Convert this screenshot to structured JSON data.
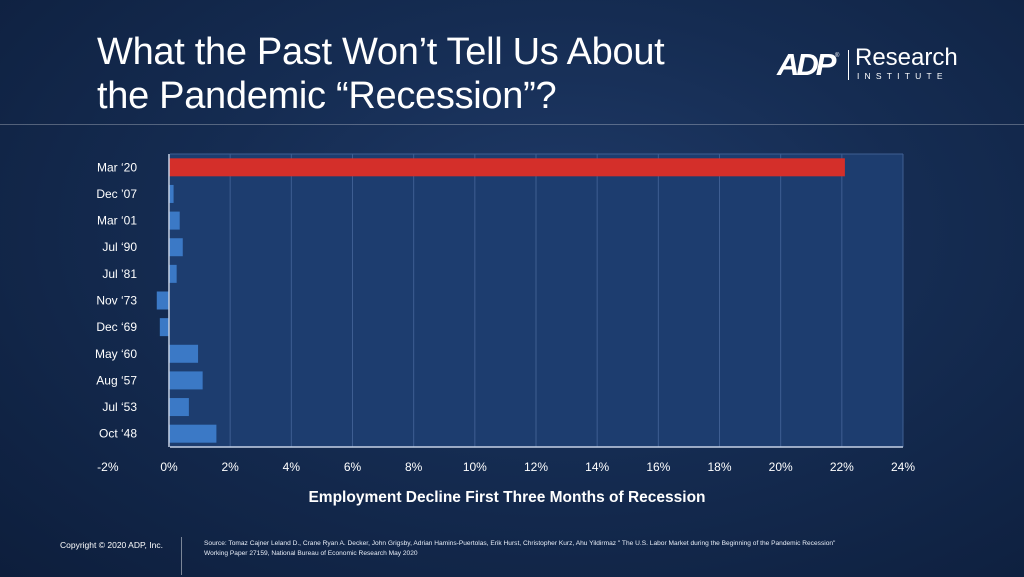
{
  "title": {
    "line1": "What the Past Won’t Tell Us About",
    "line2": "the Pandemic “Recession”?"
  },
  "logo": {
    "mark": "ADP",
    "word": "Research",
    "sub": "INSTITUTE",
    "mark_registered": "®"
  },
  "chart_data": {
    "type": "bar",
    "orientation": "horizontal",
    "categories": [
      "Mar ‘20",
      "Dec ’07",
      "Mar ‘01",
      "Jul ‘90",
      "Jul ’81",
      "Nov ‘73",
      "Dec ‘69",
      "May ‘60",
      "Aug ‘57",
      "Jul ‘53",
      "Oct ‘48"
    ],
    "values": [
      22.1,
      0.15,
      0.35,
      0.45,
      0.25,
      -0.4,
      -0.3,
      0.95,
      1.1,
      0.65,
      1.55
    ],
    "highlight_category": "Mar ‘20",
    "xlim": [
      -2,
      24
    ],
    "xticks": [
      -2,
      0,
      2,
      4,
      6,
      8,
      10,
      12,
      14,
      16,
      18,
      20,
      22,
      24
    ],
    "tick_suffix": "%",
    "xlabel": "Employment Decline First Three Months of Recession",
    "ylabel": "",
    "grid": true,
    "colors": {
      "highlight": "#d42f2a",
      "bar": "#3b79c6",
      "plot_bg": "#1d3d6f",
      "grid": "#3e5e92",
      "axis": "#c6d2e6"
    }
  },
  "footer": {
    "copyright": "Copyright © 2020 ADP, Inc.",
    "source_line1": "Source: Tomaz Cajner Leland D., Crane Ryan A. Decker, John Grigsby, Adrian Hamins-Puertolas, Erik Hurst, Christopher Kurz, Ahu Yildirmaz \" The U.S. Labor Market during the Beginning of the Pandemic Recession\"",
    "source_line2": "Working Paper 27159, National Bureau of Economic Research May 2020"
  }
}
